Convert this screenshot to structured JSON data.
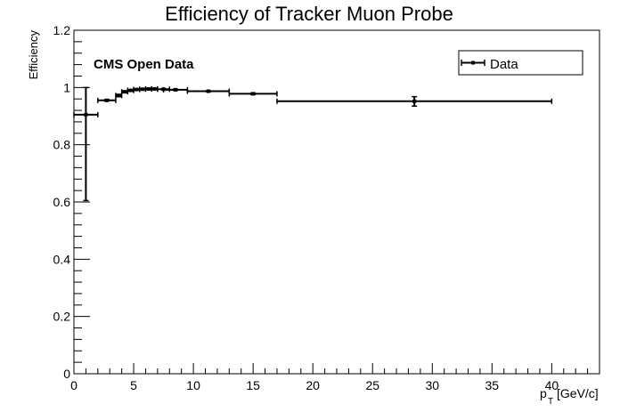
{
  "chart_data": {
    "type": "scatter",
    "title": "Efficiency of Tracker Muon Probe",
    "ylabel": "Efficiency",
    "xlabel_main": "p",
    "xlabel_sub": "T",
    "xlabel_unit": "[GeV/c]",
    "annotation": "CMS Open Data",
    "legend": {
      "label": "Data",
      "placement": "top-right"
    },
    "xlim": [
      0,
      44
    ],
    "ylim": [
      0,
      1.2
    ],
    "x_ticks": [
      0,
      5,
      10,
      15,
      20,
      25,
      30,
      35,
      40
    ],
    "y_ticks": [
      0,
      0.2,
      0.4,
      0.6,
      0.8,
      1,
      1.2
    ],
    "x_tick_labels": [
      "0",
      "5",
      "10",
      "15",
      "20",
      "25",
      "30",
      "35",
      "40"
    ],
    "y_tick_labels": [
      "0",
      "0.2",
      "0.4",
      "0.6",
      "0.8",
      "1",
      "1.2"
    ],
    "series": [
      {
        "name": "Data",
        "points": [
          {
            "x": 1.0,
            "xlo": 0.0,
            "xhi": 2.0,
            "y": 0.905,
            "ylo": 0.605,
            "yhi": 1.0
          },
          {
            "x": 2.75,
            "xlo": 2.0,
            "xhi": 3.5,
            "y": 0.955,
            "ylo": 0.953,
            "yhi": 0.958
          },
          {
            "x": 3.75,
            "xlo": 3.5,
            "xhi": 4.0,
            "y": 0.972,
            "ylo": 0.968,
            "yhi": 0.976
          },
          {
            "x": 4.25,
            "xlo": 4.0,
            "xhi": 4.5,
            "y": 0.985,
            "ylo": 0.982,
            "yhi": 0.988
          },
          {
            "x": 4.75,
            "xlo": 4.5,
            "xhi": 5.0,
            "y": 0.99,
            "ylo": 0.987,
            "yhi": 0.992
          },
          {
            "x": 5.25,
            "xlo": 5.0,
            "xhi": 5.5,
            "y": 0.993,
            "ylo": 0.991,
            "yhi": 0.995
          },
          {
            "x": 5.75,
            "xlo": 5.5,
            "xhi": 6.0,
            "y": 0.994,
            "ylo": 0.992,
            "yhi": 0.996
          },
          {
            "x": 6.25,
            "xlo": 6.0,
            "xhi": 6.5,
            "y": 0.995,
            "ylo": 0.993,
            "yhi": 0.997
          },
          {
            "x": 6.75,
            "xlo": 6.5,
            "xhi": 7.0,
            "y": 0.995,
            "ylo": 0.993,
            "yhi": 0.997
          },
          {
            "x": 7.5,
            "xlo": 7.0,
            "xhi": 8.0,
            "y": 0.994,
            "ylo": 0.992,
            "yhi": 0.996
          },
          {
            "x": 8.5,
            "xlo": 7.5,
            "xhi": 9.5,
            "y": 0.992,
            "ylo": 0.99,
            "yhi": 0.994
          },
          {
            "x": 11.25,
            "xlo": 9.5,
            "xhi": 13.0,
            "y": 0.987,
            "ylo": 0.985,
            "yhi": 0.989
          },
          {
            "x": 15.0,
            "xlo": 13.0,
            "xhi": 17.0,
            "y": 0.978,
            "ylo": 0.975,
            "yhi": 0.981
          },
          {
            "x": 28.5,
            "xlo": 17.0,
            "xhi": 40.0,
            "y": 0.952,
            "ylo": 0.935,
            "yhi": 0.968
          }
        ]
      }
    ]
  }
}
